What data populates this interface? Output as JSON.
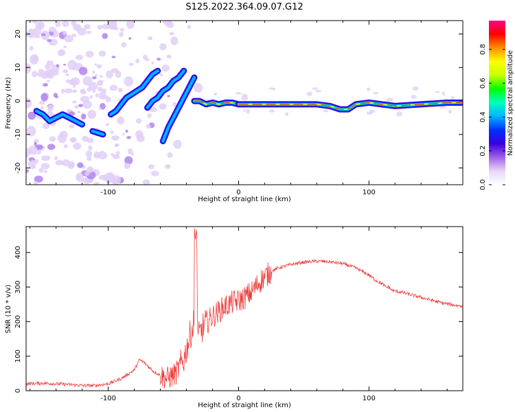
{
  "figure": {
    "title": "S125.2022.364.09.07.G12"
  },
  "chart_data": [
    {
      "type": "heatmap",
      "xlabel": "Height of straight line (km)",
      "ylabel": "Frequency (Hz)",
      "xlim": [
        -163,
        172
      ],
      "ylim": [
        -25,
        24
      ],
      "xticks": [
        -100,
        0,
        100
      ],
      "yticks": [
        -20,
        -10,
        0,
        10,
        20
      ],
      "grid": false,
      "colorbar": {
        "label": "Normalized spectral amplitude",
        "range": [
          0,
          0.97
        ],
        "ticks": [
          "0.0",
          "0.2",
          "0.4",
          "0.6",
          "0.8"
        ],
        "tick_values": [
          0,
          0.2,
          0.4,
          0.6,
          0.8
        ],
        "colormap": [
          "#ffffff",
          "#e8d6f7",
          "#a060e8",
          "#3a00e0",
          "#0030ff",
          "#00b4ff",
          "#00ffc0",
          "#00ff00",
          "#c8ff00",
          "#ffff00",
          "#ff9000",
          "#ff0000",
          "#ff0088"
        ]
      },
      "ridges": [
        {
          "x": [
            -155,
            -150,
            -145,
            -140,
            -135,
            -130,
            -125,
            -120
          ],
          "y": [
            -3,
            -4,
            -6,
            -5,
            -4,
            -5,
            -6,
            -7
          ]
        },
        {
          "x": [
            -112,
            -108,
            -104
          ],
          "y": [
            -9,
            -9.5,
            -10
          ]
        },
        {
          "x": [
            -98,
            -94,
            -90,
            -86,
            -82,
            -78,
            -74,
            -70,
            -66,
            -62
          ],
          "y": [
            -4,
            -3,
            -1,
            1,
            2,
            3,
            4,
            6,
            8,
            9
          ]
        },
        {
          "x": [
            -70,
            -66,
            -62,
            -58,
            -54,
            -50,
            -46,
            -42
          ],
          "y": [
            -2,
            0,
            1,
            3,
            4,
            6,
            7,
            9
          ]
        },
        {
          "x": [
            -58,
            -54,
            -50,
            -46,
            -42,
            -38,
            -34
          ],
          "y": [
            -12,
            -8,
            -5,
            -2,
            1,
            4,
            7
          ]
        },
        {
          "x": [
            -34,
            -30,
            -25,
            -20,
            -15,
            -10,
            -5,
            0
          ],
          "y": [
            0,
            0,
            -1,
            -0.5,
            -1,
            -0.5,
            -0.5,
            -1
          ]
        },
        {
          "x": [
            0,
            20,
            40,
            60,
            70,
            78,
            84,
            90,
            100,
            120,
            140,
            160,
            172
          ],
          "y": [
            -1,
            -1,
            -1,
            -1,
            -1.5,
            -2.5,
            -2.5,
            -1,
            -0.5,
            -1.5,
            -1,
            -0.5,
            -0.5
          ]
        }
      ]
    },
    {
      "type": "line",
      "xlabel": "Height of straight line (km)",
      "ylabel": "SNR (10 * v/v)",
      "xlim": [
        -163,
        172
      ],
      "ylim": [
        0,
        475
      ],
      "xticks": [
        -100,
        0,
        100
      ],
      "yticks": [
        0,
        100,
        200,
        300,
        400
      ],
      "grid": false,
      "series": [
        {
          "color": "#ef3b3b",
          "x": [
            -163,
            -150,
            -140,
            -130,
            -120,
            -110,
            -100,
            -90,
            -80,
            -76,
            -72,
            -65,
            -55,
            -48,
            -42,
            -38,
            -34,
            -33,
            -31,
            -28,
            -24,
            -20,
            -15,
            -10,
            -5,
            0,
            5,
            10,
            15,
            20,
            25,
            30,
            40,
            50,
            60,
            70,
            80,
            90,
            100,
            105,
            110,
            113,
            115,
            118,
            125,
            135,
            145,
            155,
            165,
            172
          ],
          "y": [
            20,
            22,
            20,
            18,
            15,
            15,
            20,
            35,
            60,
            90,
            80,
            55,
            35,
            50,
            90,
            150,
            200,
            470,
            150,
            180,
            200,
            215,
            230,
            245,
            255,
            260,
            270,
            285,
            310,
            330,
            345,
            355,
            365,
            372,
            375,
            373,
            368,
            355,
            335,
            320,
            310,
            300,
            300,
            290,
            285,
            275,
            265,
            255,
            248,
            245
          ]
        }
      ]
    }
  ]
}
